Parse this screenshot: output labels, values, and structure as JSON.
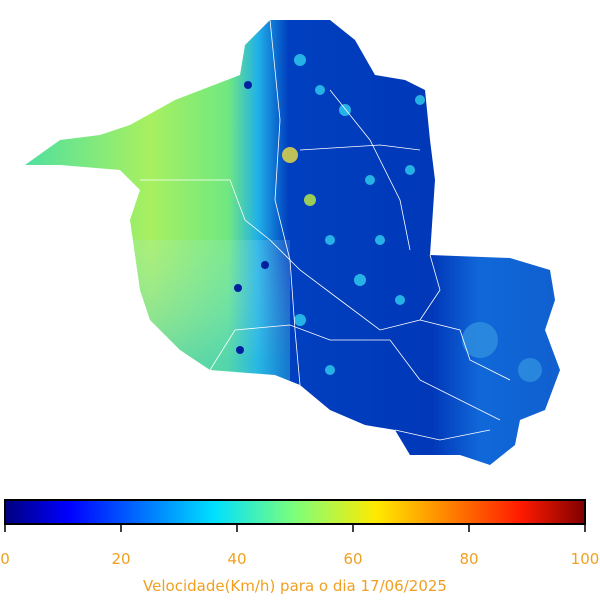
{
  "colorbar": {
    "range": [
      0,
      100
    ],
    "ticks": [
      0,
      20,
      40,
      60,
      80,
      100
    ],
    "label": "Velocidade(Km/h) para o dia 17/06/2025"
  }
}
